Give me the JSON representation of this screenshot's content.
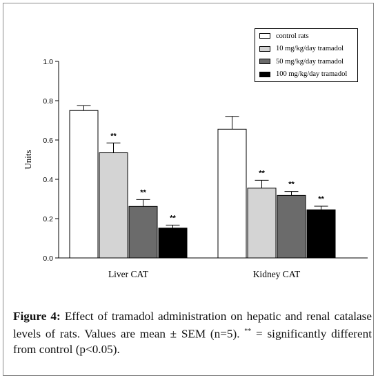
{
  "chart_data": {
    "type": "bar",
    "ylabel": "Units",
    "ylim": [
      0.0,
      1.0
    ],
    "y_ticks": [
      "0.0",
      "0.2",
      "0.4",
      "0.6",
      "0.8",
      "1.0"
    ],
    "y_tick_values": [
      0.0,
      0.2,
      0.4,
      0.6,
      0.8,
      1.0
    ],
    "categories": [
      "Liver CAT",
      "Kidney CAT"
    ],
    "legend_position": "top-right",
    "grid": false,
    "series": [
      {
        "name": "control rats",
        "color": "#ffffff",
        "values": [
          0.75,
          0.655
        ],
        "errors": [
          0.025,
          0.065
        ],
        "sig": [
          "",
          ""
        ]
      },
      {
        "name": "10 mg/kg/day tramadol",
        "color": "#d4d4d4",
        "values": [
          0.535,
          0.355
        ],
        "errors": [
          0.05,
          0.04
        ],
        "sig": [
          "**",
          "**"
        ]
      },
      {
        "name": "50 mg/kg/day tramadol",
        "color": "#6b6b6b",
        "values": [
          0.262,
          0.318
        ],
        "errors": [
          0.035,
          0.02
        ],
        "sig": [
          "**",
          "**"
        ]
      },
      {
        "name": "100 mg/kg/day tramadol",
        "color": "#000000",
        "values": [
          0.152,
          0.245
        ],
        "errors": [
          0.015,
          0.018
        ],
        "sig": [
          "**",
          "**"
        ]
      }
    ]
  },
  "caption": {
    "label": "Figure 4:",
    "text": "Effect of tramadol administration on hepatic and renal catalase levels of rats. Values are mean ± SEM (n=5).",
    "sig_marker": "**",
    "sig_text": "= significantly different from control (p<0.05)."
  }
}
